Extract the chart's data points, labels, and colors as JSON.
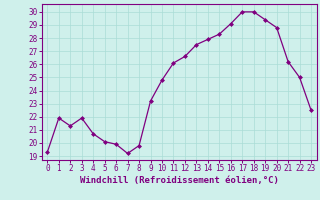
{
  "hours": [
    0,
    1,
    2,
    3,
    4,
    5,
    6,
    7,
    8,
    9,
    10,
    11,
    12,
    13,
    14,
    15,
    16,
    17,
    18,
    19,
    20,
    21,
    22,
    23
  ],
  "values": [
    19.3,
    21.9,
    21.3,
    21.9,
    20.7,
    20.1,
    19.9,
    19.2,
    19.8,
    23.2,
    24.8,
    26.1,
    26.6,
    27.5,
    27.9,
    28.3,
    29.1,
    30.0,
    30.0,
    29.4,
    28.8,
    26.2,
    25.0,
    22.5
  ],
  "line_color": "#800080",
  "marker": "D",
  "marker_size": 2.0,
  "bg_color": "#cff0eb",
  "grid_color": "#aaddd6",
  "ylabel_ticks": [
    19,
    20,
    21,
    22,
    23,
    24,
    25,
    26,
    27,
    28,
    29,
    30
  ],
  "ylim": [
    18.7,
    30.6
  ],
  "xlim": [
    -0.5,
    23.5
  ],
  "xlabel": "Windchill (Refroidissement éolien,°C)",
  "xlabel_color": "#800080",
  "tick_color": "#800080",
  "spine_color": "#800080",
  "axis_label_fontsize": 6.5,
  "tick_fontsize": 5.5,
  "linewidth": 0.9
}
